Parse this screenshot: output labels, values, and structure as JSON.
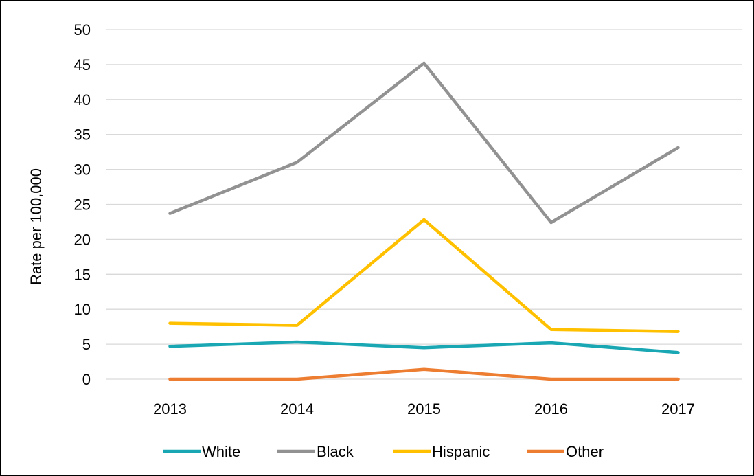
{
  "chart_data": {
    "type": "line",
    "title": "",
    "xlabel": "",
    "ylabel": "Rate per 100,000",
    "categories": [
      "2013",
      "2014",
      "2015",
      "2016",
      "2017"
    ],
    "ylim": [
      0,
      50
    ],
    "yticks": [
      0,
      5,
      10,
      15,
      20,
      25,
      30,
      35,
      40,
      45,
      50
    ],
    "grid": true,
    "legend_position": "bottom",
    "series": [
      {
        "name": "White",
        "color": "#1aa7b4",
        "values": [
          4.7,
          5.3,
          4.5,
          5.2,
          3.8
        ]
      },
      {
        "name": "Black",
        "color": "#929292",
        "values": [
          23.7,
          31.0,
          45.2,
          22.4,
          33.1
        ]
      },
      {
        "name": "Hispanic",
        "color": "#ffc000",
        "values": [
          8.0,
          7.7,
          22.8,
          7.1,
          6.8
        ]
      },
      {
        "name": "Other",
        "color": "#ed7d31",
        "values": [
          0,
          0,
          1.4,
          0,
          0
        ]
      }
    ]
  }
}
